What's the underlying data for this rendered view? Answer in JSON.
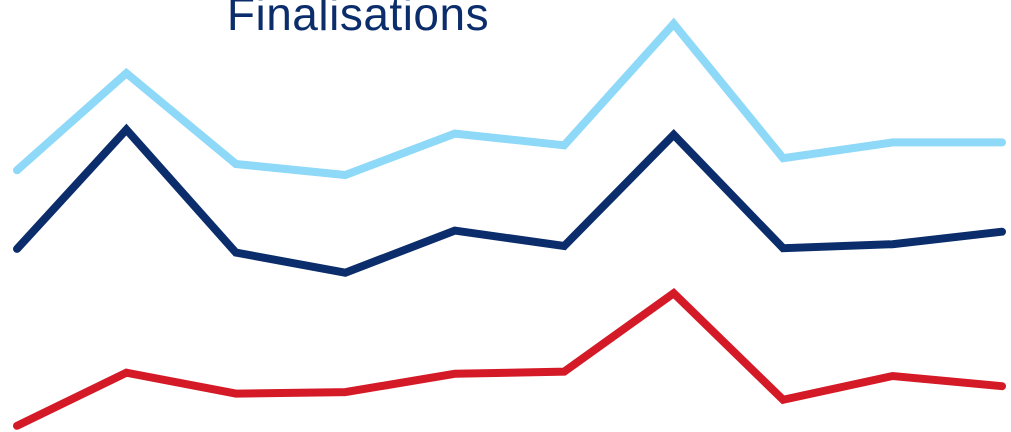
{
  "chart_data": {
    "type": "line",
    "title": "Finalisations",
    "categories": [
      "",
      "",
      "",
      "",
      "",
      "",
      "",
      "",
      "",
      ""
    ],
    "series": [
      {
        "color": "#8ed8f8",
        "values": [
          69.5,
          96,
          71.2,
          68.2,
          79.5,
          76.3,
          109.5,
          72.8,
          77.1,
          77.1
        ]
      },
      {
        "color": "#0b2d6b",
        "values": [
          48,
          80.6,
          47,
          41.5,
          53,
          48.8,
          79.2,
          48.2,
          49.3,
          52.7
        ]
      },
      {
        "color": "#d51a27",
        "values": [
          -0.3,
          14.2,
          8.5,
          8.9,
          13.9,
          14.5,
          35.9,
          6.8,
          13.3,
          10.5
        ]
      }
    ],
    "ylim": [
      -2,
      116
    ],
    "xlabel": "",
    "ylabel": "",
    "grid": false,
    "legend": "none"
  }
}
